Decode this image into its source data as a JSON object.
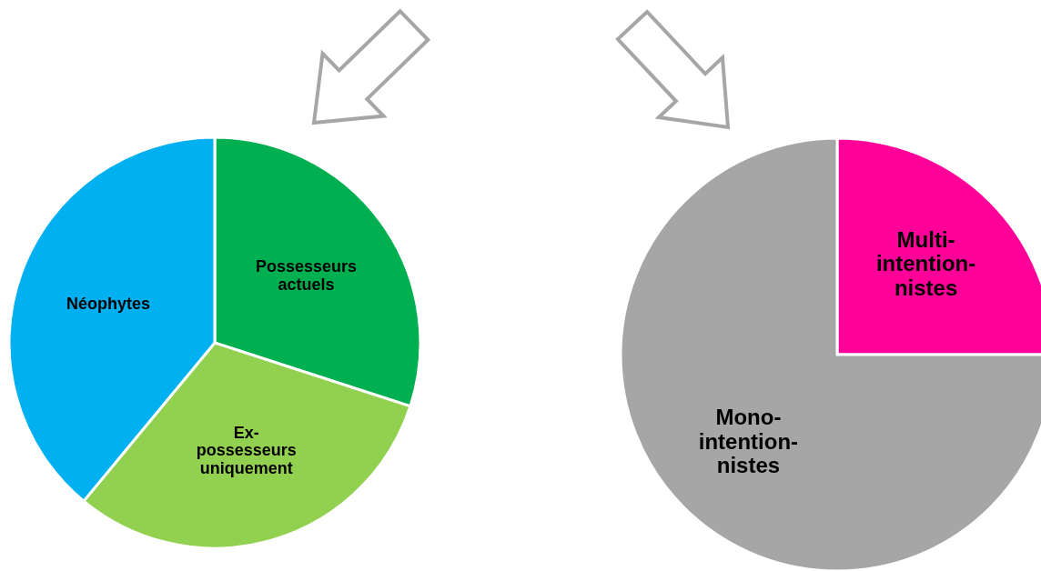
{
  "chart_data": [
    {
      "type": "pie",
      "categories": [
        "Possesseurs\nactuels",
        "Ex-\npossesseurs\nuniquement",
        "Néophytes"
      ],
      "values": [
        30,
        31,
        39
      ],
      "colors": [
        "#00b050",
        "#92d050",
        "#00b0f0"
      ]
    },
    {
      "type": "pie",
      "categories": [
        "Multi-\nintention-\nnistes",
        "Mono-\nintention-\nnistes"
      ],
      "values": [
        25,
        75
      ],
      "colors": [
        "#ff0099",
        "#a6a6a6"
      ]
    }
  ]
}
